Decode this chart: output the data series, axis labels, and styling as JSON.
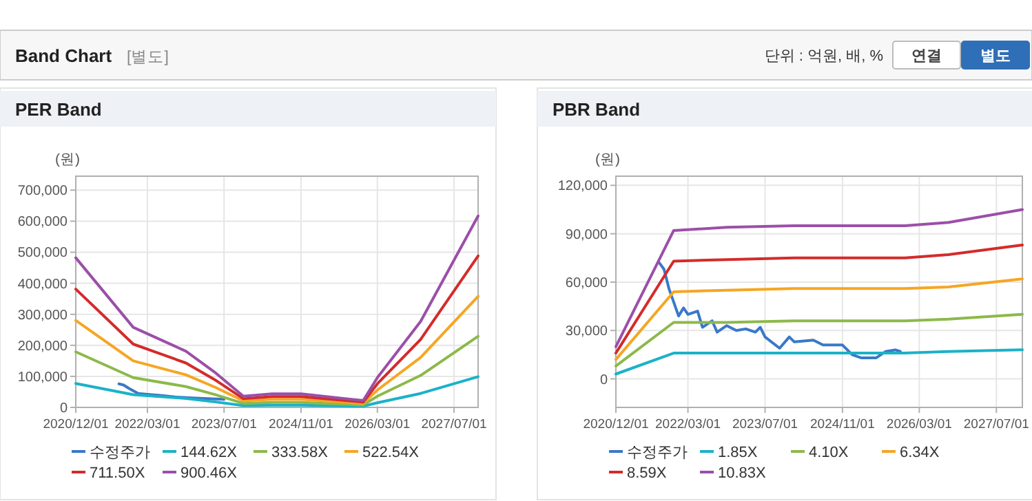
{
  "chart_data": [
    {
      "type": "other",
      "title": "Band Chart",
      "subtitle": "[별도]",
      "annotations": [
        "단위 : 억원, 배, %",
        "연결",
        "별도"
      ]
    },
    {
      "type": "line",
      "title": "PER Band",
      "ylabel": "(원)",
      "grid": true,
      "legend": "bottom",
      "marker": "none",
      "line_style": "solid",
      "xlim": [
        "2020-12-01",
        "2027-12-01"
      ],
      "xticks": [
        {
          "value": "2020-12-01",
          "label": "2020/12/01"
        },
        {
          "value": "2022-03-01",
          "label": "2022/03/01"
        },
        {
          "value": "2023-07-01",
          "label": "2023/07/01"
        },
        {
          "value": "2024-11-01",
          "label": "2024/11/01"
        },
        {
          "value": "2026-03-01",
          "label": "2026/03/01"
        },
        {
          "value": "2027-07-01",
          "label": "2027/07/01"
        }
      ],
      "ylim": [
        0,
        745000
      ],
      "yticks": [
        0,
        {
          "value": 100000,
          "label": "100,000"
        },
        {
          "value": 200000,
          "label": "200,000"
        },
        {
          "value": 300000,
          "label": "300,000"
        },
        {
          "value": 400000,
          "label": "400,000"
        },
        {
          "value": 500000,
          "label": "500,000"
        },
        {
          "value": 600000,
          "label": "600,000"
        },
        {
          "value": 700000,
          "label": "700,000"
        }
      ],
      "series": [
        {
          "name": "수정주가",
          "color": "#3a78c9",
          "x": [
            "2021-09-01",
            "2021-10-01",
            "2021-11-01",
            "2022-01-01",
            "2022-03-01",
            "2022-06-01",
            "2022-09-01",
            "2023-01-01",
            "2023-07-01"
          ],
          "values": [
            76000,
            72000,
            62000,
            45000,
            42000,
            38000,
            33000,
            30000,
            26000
          ]
        },
        {
          "name": "144.62X",
          "color": "#1ab2c8",
          "x": [
            "2020-12-01",
            "2021-12-01",
            "2022-11-01",
            "2023-05-01",
            "2023-11-01",
            "2024-05-01",
            "2024-11-01",
            "2025-12-01",
            "2026-03-01",
            "2026-12-01",
            "2027-12-01"
          ],
          "values": [
            77000,
            41000,
            29000,
            18000,
            6000,
            7000,
            7000,
            4000,
            15000,
            45000,
            99000
          ]
        },
        {
          "name": "333.58X",
          "color": "#8cb94a",
          "x": [
            "2020-12-01",
            "2021-12-01",
            "2022-11-01",
            "2023-05-01",
            "2023-11-01",
            "2024-05-01",
            "2024-11-01",
            "2025-12-01",
            "2026-03-01",
            "2026-12-01",
            "2027-12-01"
          ],
          "values": [
            179000,
            96000,
            67000,
            42000,
            13000,
            16000,
            16000,
            8000,
            36000,
            103000,
            229000
          ]
        },
        {
          "name": "522.54X",
          "color": "#f5a623",
          "x": [
            "2020-12-01",
            "2021-12-01",
            "2022-11-01",
            "2023-05-01",
            "2023-11-01",
            "2024-05-01",
            "2024-11-01",
            "2025-12-01",
            "2026-03-01",
            "2026-12-01",
            "2027-12-01"
          ],
          "values": [
            280000,
            150000,
            105000,
            66000,
            21000,
            26000,
            26000,
            13000,
            56000,
            161000,
            358000
          ]
        },
        {
          "name": "711.50X",
          "color": "#d42b2b",
          "x": [
            "2020-12-01",
            "2021-12-01",
            "2022-11-01",
            "2023-05-01",
            "2023-11-01",
            "2024-05-01",
            "2024-11-01",
            "2025-12-01",
            "2026-03-01",
            "2026-12-01",
            "2027-12-01"
          ],
          "values": [
            381000,
            204000,
            143000,
            90000,
            28000,
            35000,
            35000,
            17000,
            76000,
            219000,
            488000
          ]
        },
        {
          "name": "900.46X",
          "color": "#9b4fa8",
          "x": [
            "2020-12-01",
            "2021-12-01",
            "2022-11-01",
            "2023-05-01",
            "2023-11-01",
            "2024-05-01",
            "2024-11-01",
            "2025-12-01",
            "2026-03-01",
            "2026-12-01",
            "2027-12-01"
          ],
          "values": [
            482000,
            258000,
            181000,
            114000,
            36000,
            44000,
            44000,
            22000,
            96000,
            277000,
            617000
          ]
        }
      ]
    },
    {
      "type": "line",
      "title": "PBR Band",
      "ylabel": "(원)",
      "grid": true,
      "legend": "bottom",
      "marker": "none",
      "line_style": "solid",
      "xlim": [
        "2020-12-01",
        "2027-12-12"
      ],
      "xticks": [
        {
          "value": "2020-12-01",
          "label": "2020/12/01"
        },
        {
          "value": "2022-03-01",
          "label": "2022/03/01"
        },
        {
          "value": "2023-07-01",
          "label": "2023/07/01"
        },
        {
          "value": "2024-11-01",
          "label": "2024/11/01"
        },
        {
          "value": "2026-03-01",
          "label": "2026/03/01"
        },
        {
          "value": "2027-07-01",
          "label": "2027/07/01"
        }
      ],
      "ylim": [
        -17700,
        125700
      ],
      "yticks": [
        0,
        {
          "value": 30000,
          "label": "30,000"
        },
        {
          "value": 60000,
          "label": "60,000"
        },
        {
          "value": 90000,
          "label": "90,000"
        },
        {
          "value": 120000,
          "label": "120,000"
        }
      ],
      "series": [
        {
          "name": "수정주가",
          "color": "#3a78c9",
          "x": [
            "2021-09-01",
            "2021-10-01",
            "2021-11-01",
            "2022-01-01",
            "2022-02-01",
            "2022-03-01",
            "2022-05-01",
            "2022-06-01",
            "2022-08-01",
            "2022-09-01",
            "2022-11-01",
            "2023-01-01",
            "2023-03-01",
            "2023-05-01",
            "2023-06-01",
            "2023-07-01",
            "2023-10-01",
            "2023-12-01",
            "2024-01-01",
            "2024-05-01",
            "2024-07-01",
            "2024-11-01",
            "2025-01-01",
            "2025-03-01",
            "2025-06-01",
            "2025-08-01",
            "2025-10-01",
            "2025-11-01"
          ],
          "values": [
            72000,
            68000,
            56000,
            39000,
            44000,
            40000,
            42000,
            32000,
            36000,
            29000,
            33000,
            30000,
            31000,
            29000,
            32000,
            26000,
            19000,
            26000,
            23000,
            24000,
            21000,
            21000,
            15000,
            13000,
            13000,
            17000,
            18000,
            17000
          ]
        },
        {
          "name": "1.85X",
          "color": "#1ab2c8",
          "x": [
            "2020-12-01",
            "2021-12-01",
            "2022-11-01",
            "2024-01-01",
            "2025-12-01",
            "2026-09-01",
            "2027-12-12"
          ],
          "values": [
            3000,
            16000,
            16000,
            16000,
            16000,
            17000,
            18000
          ]
        },
        {
          "name": "4.10X",
          "color": "#8cb94a",
          "x": [
            "2020-12-01",
            "2021-12-01",
            "2022-11-01",
            "2024-01-01",
            "2025-12-01",
            "2026-09-01",
            "2027-12-12"
          ],
          "values": [
            8000,
            35000,
            35000,
            36000,
            36000,
            37000,
            40000
          ]
        },
        {
          "name": "6.34X",
          "color": "#f5a623",
          "x": [
            "2020-12-01",
            "2021-12-01",
            "2022-11-01",
            "2024-01-01",
            "2025-12-01",
            "2026-09-01",
            "2027-12-12"
          ],
          "values": [
            12000,
            54000,
            55000,
            56000,
            56000,
            57000,
            62000
          ]
        },
        {
          "name": "8.59X",
          "color": "#d42b2b",
          "x": [
            "2020-12-01",
            "2021-12-01",
            "2022-11-01",
            "2024-01-01",
            "2025-12-01",
            "2026-09-01",
            "2027-12-12"
          ],
          "values": [
            16000,
            73000,
            74000,
            75000,
            75000,
            77000,
            83000
          ]
        },
        {
          "name": "10.83X",
          "color": "#9b4fa8",
          "x": [
            "2020-12-01",
            "2021-12-01",
            "2022-11-01",
            "2024-01-01",
            "2025-12-01",
            "2026-09-01",
            "2027-12-12"
          ],
          "values": [
            20000,
            92000,
            94000,
            95000,
            95000,
            97000,
            105000
          ]
        }
      ]
    }
  ]
}
